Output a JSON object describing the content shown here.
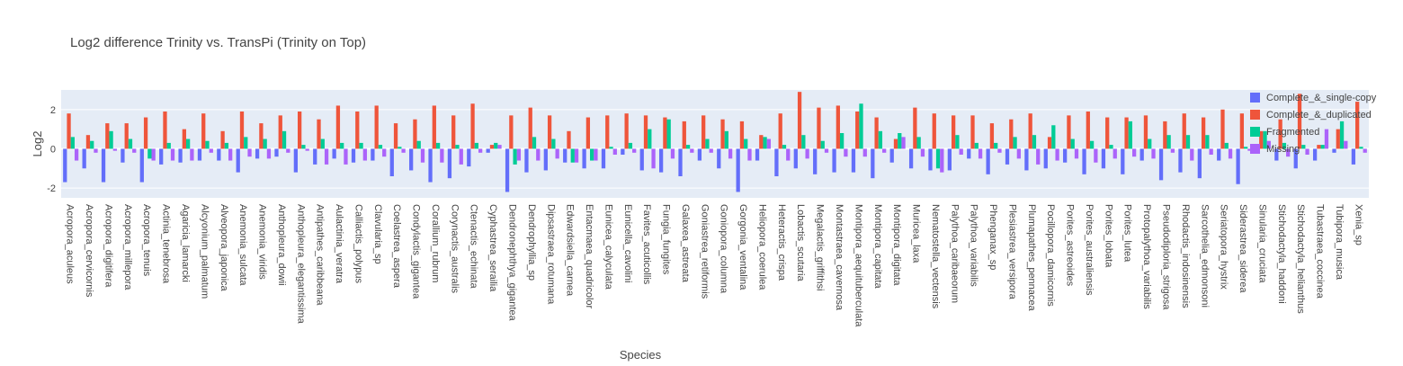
{
  "chart_data": {
    "type": "bar",
    "title": "Log2 difference Trinity vs. TransPi (Trinity on Top)",
    "xlabel": "Species",
    "ylabel": "Log2",
    "ylim": [
      -2.5,
      3
    ],
    "yticks": [
      -2,
      0,
      2
    ],
    "grid": true,
    "legend_position": "right",
    "categories": [
      "Acropora_aculeus",
      "Acropora_cervicornis",
      "Acropora_digitifera",
      "Acropora_millepora",
      "Acropora_tenuis",
      "Actinia_tenebrosa",
      "Agaricia_lamarcki",
      "Alcyonium_palmatum",
      "Alveopora_japonica",
      "Anemonia_sulcata",
      "Anemonia_viridis",
      "Anthopleura_dowii",
      "Anthopleura_elegantissima",
      "Antipathes_caribbeana",
      "Aulactinia_veratra",
      "Calliactis_polypus",
      "Clavularia_sp",
      "Coelastrea_aspera",
      "Condylactis_gigantea",
      "Corallium_rubrum",
      "Corynactis_australis",
      "Ctenactis_echinata",
      "Cyphastrea_serailia",
      "Dendronephthya_gigantea",
      "Dendrophyllia_sp",
      "Dipsastraea_rotumana",
      "Edwardsiella_carnea",
      "Entacmaea_quadricolor",
      "Eunicea_calyculata",
      "Eunicella_cavolini",
      "Favites_acuticollis",
      "Fungia_fungites",
      "Galaxea_astreata",
      "Goniastrea_retiformis",
      "Goniopora_columna",
      "Gorgonia_ventalina",
      "Heliopora_coerulea",
      "Heteractis_crispa",
      "Lobactis_scutaria",
      "Megalactis_griffithsi",
      "Montastraea_cavernosa",
      "Montipora_aequituberculata",
      "Montipora_capitata",
      "Montipora_digitata",
      "Muricea_laxa",
      "Nematostella_vectensis",
      "Palythoa_caribaeorum",
      "Palythoa_variabilis",
      "Phenganax_sp",
      "Plesiastrea_versipora",
      "Plumapathes_pennacea",
      "Pocillopora_damicornis",
      "Porites_astreoides",
      "Porites_australiensis",
      "Porites_lobata",
      "Porites_lutea",
      "Protopalythoa_variabilis",
      "Pseudodiploria_strigosa",
      "Rhodactis_indosinensis",
      "Sarcothelia_edmonsoni",
      "Seriatopora_hystrix",
      "Siderastrea_siderea",
      "Sinularia_cruciata",
      "Stichodactyla_haddoni",
      "Stichodactyla_helianthus",
      "Tubastraea_coccinea",
      "Tubipora_musica",
      "Xenia_sp"
    ],
    "series": [
      {
        "name": "Complete_&_single-copy",
        "color": "#636efa",
        "values": [
          -1.7,
          -1.0,
          -1.7,
          -0.7,
          -1.7,
          -0.8,
          -0.7,
          -0.6,
          -0.6,
          -1.2,
          -0.5,
          -0.4,
          -1.2,
          -0.8,
          -0.5,
          -0.7,
          -0.6,
          -1.4,
          -1.1,
          -1.7,
          -1.5,
          -0.9,
          -0.2,
          -2.2,
          -1.2,
          -1.1,
          -0.7,
          -1.0,
          -1.0,
          -0.3,
          -1.1,
          -1.2,
          -1.4,
          -0.6,
          -1.0,
          -2.2,
          -0.6,
          -1.4,
          -1.0,
          -1.3,
          -1.2,
          -1.2,
          -1.5,
          -0.7,
          -1.0,
          -1.1,
          -1.1,
          -0.5,
          -1.3,
          -0.8,
          -1.1,
          -1.0,
          -0.7,
          -1.3,
          -1.0,
          -1.3,
          -0.6,
          -1.6,
          -1.2,
          -1.5,
          -0.6,
          -1.8,
          -0.2,
          -0.6,
          -1.0,
          -0.6,
          -0.2,
          -0.8
        ]
      },
      {
        "name": "Complete_&_duplicated",
        "color": "#ef553b",
        "values": [
          1.8,
          0.7,
          1.3,
          1.3,
          1.6,
          1.9,
          1.0,
          1.8,
          0.9,
          1.9,
          1.3,
          1.7,
          1.9,
          1.5,
          2.2,
          1.9,
          2.2,
          1.3,
          1.5,
          2.2,
          1.7,
          2.3,
          0.2,
          1.7,
          2.1,
          1.7,
          0.9,
          1.6,
          1.7,
          1.8,
          1.7,
          1.6,
          1.4,
          1.7,
          1.5,
          1.4,
          0.7,
          1.8,
          2.9,
          2.1,
          2.2,
          1.9,
          1.6,
          0.5,
          2.1,
          1.8,
          1.7,
          1.7,
          1.3,
          1.5,
          1.8,
          0.6,
          1.7,
          1.9,
          1.6,
          1.6,
          1.7,
          1.4,
          1.8,
          1.6,
          2.0,
          1.8,
          0.9,
          1.5,
          2.8,
          0.2,
          1.0,
          2.4
        ]
      },
      {
        "name": "Fragmented",
        "color": "#00cc96",
        "values": [
          0.6,
          0.4,
          0.9,
          0.5,
          -0.5,
          0.3,
          0.5,
          0.4,
          0.3,
          0.6,
          0.5,
          0.9,
          0.2,
          0.5,
          0.3,
          0.3,
          0.2,
          0.1,
          0.4,
          0.3,
          0.2,
          0.3,
          0.3,
          -0.8,
          0.6,
          0.5,
          -0.7,
          -0.6,
          0.1,
          0.3,
          1.0,
          1.5,
          0.2,
          0.5,
          0.9,
          0.5,
          0.6,
          0.2,
          0.7,
          0.4,
          0.8,
          2.3,
          0.9,
          0.8,
          0.6,
          -1.0,
          0.7,
          0.3,
          0.3,
          0.6,
          0.7,
          1.2,
          0.5,
          0.4,
          0.2,
          1.4,
          0.5,
          0.7,
          0.7,
          0.7,
          0.3,
          0.1,
          0.9,
          0.3,
          0.2,
          0.2,
          1.4,
          0.1
        ]
      },
      {
        "name": "Missing",
        "color": "#ab63fa",
        "values": [
          -0.6,
          -0.2,
          -0.1,
          -0.2,
          -0.6,
          -0.6,
          -0.6,
          -0.2,
          -0.6,
          -0.4,
          -0.5,
          -0.2,
          -0.1,
          -0.8,
          -0.8,
          -0.6,
          -0.4,
          -0.2,
          -0.7,
          -0.7,
          -0.8,
          -0.2,
          0.2,
          -0.6,
          -0.6,
          -0.5,
          -0.7,
          -0.6,
          -0.3,
          -0.2,
          -1.0,
          -0.5,
          -0.2,
          -0.2,
          -0.5,
          -0.6,
          0.5,
          -0.6,
          -0.5,
          -0.2,
          -0.4,
          -0.4,
          -0.2,
          0.6,
          -0.4,
          -1.2,
          -0.3,
          -0.5,
          -0.2,
          -0.5,
          -0.8,
          -0.6,
          -0.5,
          -0.7,
          -0.5,
          -0.4,
          -0.5,
          -0.2,
          -0.6,
          -0.3,
          -0.5,
          -0.1,
          0.4,
          -0.4,
          -0.3,
          1.0,
          0.4,
          -0.2
        ]
      }
    ]
  }
}
